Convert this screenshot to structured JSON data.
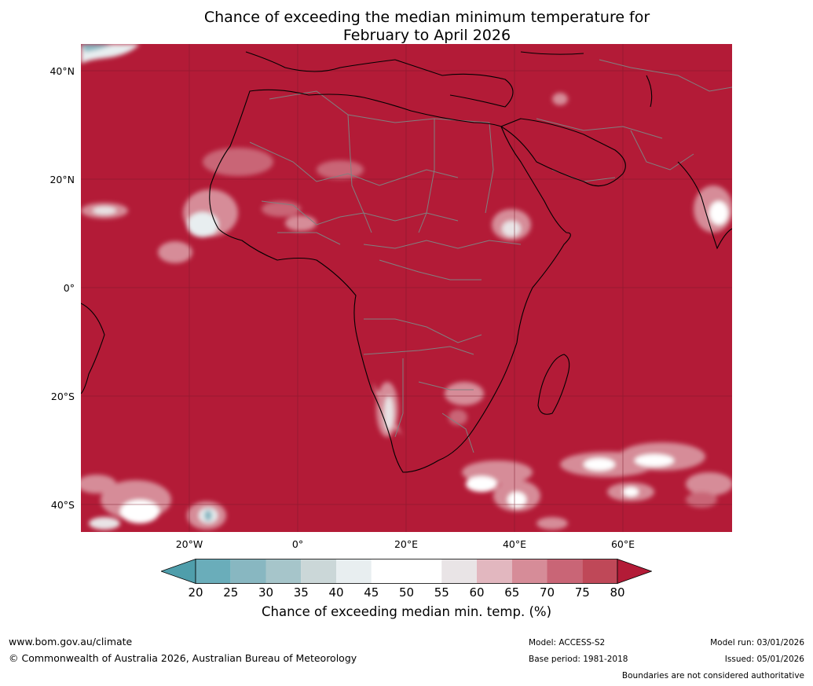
{
  "title": {
    "line1": "Chance of exceeding the median minimum temperature for",
    "line2": "February to April 2026"
  },
  "map": {
    "lat_labels": [
      "40°N",
      "20°N",
      "0°",
      "20°S",
      "40°S"
    ],
    "lon_labels": [
      "20°W",
      "0°",
      "20°E",
      "40°E",
      "60°E"
    ],
    "background_color": "#b31b37",
    "coastline_color": "#000000",
    "border_color": "#808080",
    "gridline_color": "#7a1a2a"
  },
  "colorbar": {
    "ticks": [
      "20",
      "25",
      "30",
      "35",
      "40",
      "45",
      "50",
      "55",
      "60",
      "65",
      "70",
      "75",
      "80"
    ],
    "colors": [
      "#4f9eab",
      "#6aadba",
      "#88b7c1",
      "#a6c5ca",
      "#cbd7d8",
      "#e8eef0",
      "#ffffff",
      "#ffffff",
      "#e9e4e6",
      "#e2b7bf",
      "#d68c98",
      "#c96576",
      "#bf4858",
      "#b31b37"
    ],
    "label": "Chance of exceeding median min. temp. (%)"
  },
  "footer": {
    "website": "www.bom.gov.au/climate",
    "copyright": "© Commonwealth of Australia 2026, Australian Bureau of Meteorology",
    "model": "Model: ACCESS-S2",
    "base_period": "Base period: 1981-2018",
    "model_run": "Model run: 03/01/2026",
    "issued": "Issued: 05/01/2026",
    "disclaimer": "Boundaries are not considered authoritative"
  }
}
